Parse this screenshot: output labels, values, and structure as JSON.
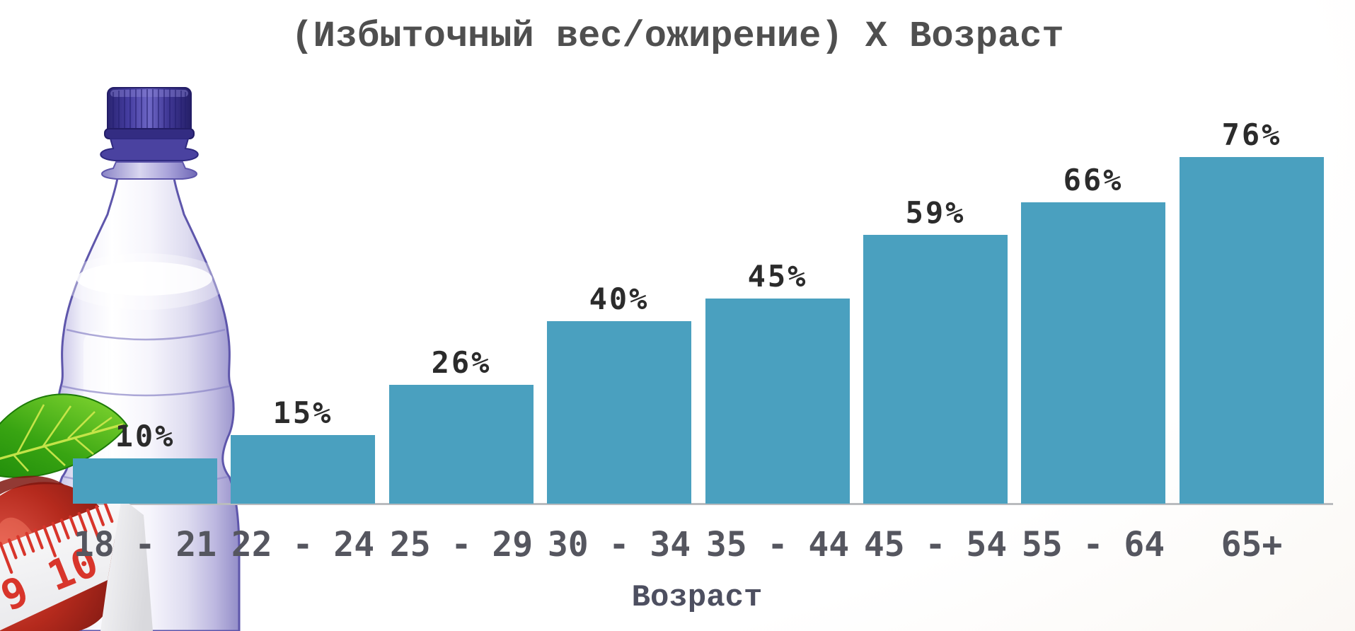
{
  "header": {
    "title": "(Избыточный вес/ожирение) X Возраст"
  },
  "xaxis": {
    "label": "Возраст"
  },
  "chart_data": {
    "type": "bar",
    "title": "(Избыточный вес/ожирение) X Возраст",
    "categories": [
      "18 - 21",
      "22 - 24",
      "25 - 29",
      "30 - 34",
      "35 - 44",
      "45 - 54",
      "55 - 64",
      "65+"
    ],
    "values": [
      10,
      15,
      26,
      40,
      45,
      59,
      66,
      76
    ],
    "value_labels": [
      "10%",
      "15%",
      "26%",
      "40%",
      "45%",
      "59%",
      "66%",
      "76%"
    ],
    "xlabel": "Возраст",
    "ylabel": "",
    "ylim": [
      0,
      80
    ],
    "y_axis_visible": false,
    "grid": false,
    "legend": false,
    "bar_color": "#4AA0BF"
  },
  "decor": {
    "tape_number_left": "9",
    "tape_number_right": "10"
  },
  "colors": {
    "bar": "#4AA0BF",
    "axis_line": "#B9BBBE",
    "title_text": "#4F4F4F",
    "value_label_text": "#2B2B2B",
    "tick_label_text": "#55565F",
    "xaxis_label_text": "#4D4F60",
    "tape_text": "#D8352B",
    "cap_dark": "#251F68",
    "bottle_outline": "#5E56AB",
    "leaf_green": "#38A412",
    "apple_red": "#B52A1D"
  }
}
